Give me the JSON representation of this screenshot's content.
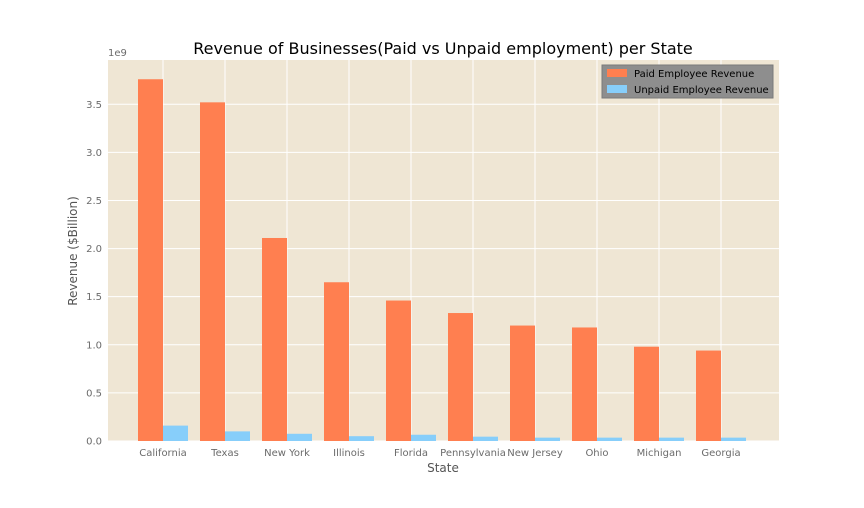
{
  "chart_data": {
    "type": "bar",
    "title": "Revenue of Businesses(Paid vs Unpaid employment) per State",
    "xlabel": "State",
    "ylabel": "Revenue ($Billion)",
    "y_offset_label": "1e9",
    "categories": [
      "California",
      "Texas",
      "New York",
      "Illinois",
      "Florida",
      "Pennsylvania",
      "New Jersey",
      "Ohio",
      "Michigan",
      "Georgia"
    ],
    "series": [
      {
        "name": "Paid Employee Revenue",
        "color": "#ff7f50",
        "values": [
          3760000000,
          3520000000,
          2110000000,
          1650000000,
          1460000000,
          1330000000,
          1200000000,
          1180000000,
          980000000,
          940000000
        ]
      },
      {
        "name": "Unpaid Employee Revenue",
        "color": "#87cefa",
        "values": [
          160000000,
          100000000,
          75000000,
          50000000,
          65000000,
          45000000,
          35000000,
          35000000,
          35000000,
          35000000
        ]
      }
    ],
    "ylim": [
      0,
      3960000000
    ],
    "yticks": [
      0,
      500000000,
      1000000000,
      1500000000,
      2000000000,
      2500000000,
      3000000000,
      3500000000
    ],
    "ytick_labels": [
      "0.0",
      "0.5",
      "1.0",
      "1.5",
      "2.0",
      "2.5",
      "3.0",
      "3.5"
    ],
    "grid": true,
    "legend_position": "top-right",
    "plot_background": "#efe6d4",
    "grid_color": "#ffffff"
  }
}
